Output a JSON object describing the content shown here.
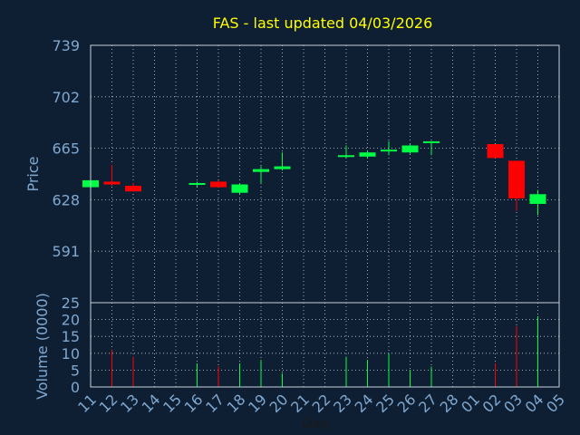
{
  "chart_data": {
    "type": "candlestick",
    "title": "FAS - last updated 04/03/2026",
    "xlabel": "Day",
    "ylabel": "Price",
    "ylabel_volume": "Volume (0000)",
    "categories": [
      "11",
      "12",
      "13",
      "14",
      "15",
      "16",
      "17",
      "18",
      "19",
      "20",
      "21",
      "22",
      "23",
      "24",
      "25",
      "26",
      "27",
      "28",
      "01",
      "02",
      "03",
      "04",
      "05"
    ],
    "price_axis": {
      "ylim": [
        554,
        739
      ],
      "ticks": [
        739,
        702,
        665,
        628,
        591
      ]
    },
    "volume_axis": {
      "ylim": [
        0,
        25
      ],
      "ticks": [
        25,
        20,
        15,
        10,
        5,
        0
      ]
    },
    "grid": true,
    "candles": [
      {
        "day": "11",
        "open": 637,
        "high": 642,
        "low": 636,
        "close": 642,
        "volume": 3
      },
      {
        "day": "12",
        "open": 641,
        "high": 653,
        "low": 638,
        "close": 639,
        "volume": 11
      },
      {
        "day": "13",
        "open": 638,
        "high": 640,
        "low": 634,
        "close": 634,
        "volume": 9
      },
      {
        "day": "16",
        "open": 639,
        "high": 641,
        "low": 637,
        "close": 640,
        "volume": 7
      },
      {
        "day": "17",
        "open": 641,
        "high": 642,
        "low": 637,
        "close": 637,
        "volume": 6
      },
      {
        "day": "18",
        "open": 633,
        "high": 640,
        "low": 632,
        "close": 639,
        "volume": 7
      },
      {
        "day": "19",
        "open": 648,
        "high": 652,
        "low": 640,
        "close": 650,
        "volume": 8
      },
      {
        "day": "20",
        "open": 650,
        "high": 662,
        "low": 649,
        "close": 652,
        "volume": 4
      },
      {
        "day": "23",
        "open": 659,
        "high": 667,
        "low": 658,
        "close": 660,
        "volume": 9
      },
      {
        "day": "24",
        "open": 659,
        "high": 663,
        "low": 658,
        "close": 662,
        "volume": 8
      },
      {
        "day": "25",
        "open": 663,
        "high": 670,
        "low": 660,
        "close": 664,
        "volume": 10
      },
      {
        "day": "26",
        "open": 662,
        "high": 668,
        "low": 661,
        "close": 667,
        "volume": 5
      },
      {
        "day": "27",
        "open": 669,
        "high": 670,
        "low": 660,
        "close": 670,
        "volume": 6
      },
      {
        "day": "02",
        "open": 668,
        "high": 668,
        "low": 658,
        "close": 658,
        "volume": 7
      },
      {
        "day": "03",
        "open": 656,
        "high": 656,
        "low": 620,
        "close": 629,
        "volume": 18
      },
      {
        "day": "04",
        "open": 625,
        "high": 635,
        "low": 617,
        "close": 632,
        "volume": 21
      }
    ],
    "colors": {
      "up": "#00ff44",
      "down": "#ff0000",
      "background": "#0f1f33",
      "text": "#7fa8d0",
      "title": "#ffff00",
      "grid": "#c8d0d8"
    }
  }
}
